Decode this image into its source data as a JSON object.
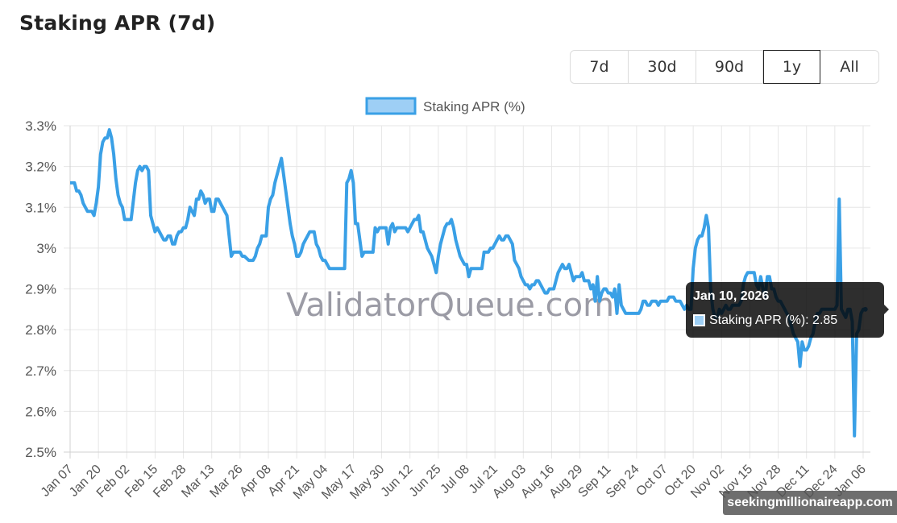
{
  "page": {
    "title": "Staking APR (7d)"
  },
  "range_selector": {
    "options": [
      {
        "label": "7d",
        "active": false
      },
      {
        "label": "30d",
        "active": false
      },
      {
        "label": "90d",
        "active": false
      },
      {
        "label": "1y",
        "active": true
      },
      {
        "label": "All",
        "active": false
      }
    ]
  },
  "watermarks": {
    "center": "ValidatorQueue.com",
    "corner": "seekingmillionaireapp.com"
  },
  "tooltip": {
    "title": "Jan 10, 2026",
    "label": "Staking APR (%): 2.85",
    "swatch_color": "#9ecff5"
  },
  "colors": {
    "line": "#3aa0e6",
    "legend_fill": "#9ecff5",
    "grid": "#e6e6e6",
    "axis_text": "#555555"
  },
  "chart_data": {
    "type": "line",
    "title": "Staking APR (7d)",
    "xlabel": "",
    "ylabel": "",
    "ylim": [
      2.5,
      3.3
    ],
    "y_ticks": [
      "3.3%",
      "3.2%",
      "3.1%",
      "3%",
      "2.9%",
      "2.8%",
      "2.7%",
      "2.6%",
      "2.5%"
    ],
    "x_ticks": [
      "Jan 07",
      "Jan 20",
      "Feb 02",
      "Feb 15",
      "Feb 28",
      "Mar 13",
      "Mar 26",
      "Apr 08",
      "Apr 21",
      "May 04",
      "May 17",
      "May 30",
      "Jun 12",
      "Jun 25",
      "Jul 08",
      "Jul 21",
      "Aug 03",
      "Aug 16",
      "Aug 29",
      "Sep 11",
      "Sep 24",
      "Oct 07",
      "Oct 20",
      "Nov 02",
      "Nov 15",
      "Nov 28",
      "Dec 11",
      "Dec 24",
      "Jan 06"
    ],
    "grid": true,
    "legend": {
      "position": "top",
      "entries": [
        "Staking APR (%)"
      ]
    },
    "series": [
      {
        "name": "Staking APR (%)",
        "x_days": [
          0,
          2,
          3,
          4,
          5,
          6,
          8,
          9,
          10,
          11,
          12,
          13,
          14,
          15,
          16,
          17,
          18,
          19,
          20,
          21,
          22,
          23,
          24,
          25,
          26,
          28,
          30,
          31,
          32,
          33,
          34,
          35,
          36,
          37,
          38,
          39,
          40,
          41,
          42,
          43,
          44,
          45,
          46,
          47,
          48,
          49,
          50,
          51,
          52,
          53,
          54,
          55,
          56,
          57,
          58,
          59,
          60,
          61,
          62,
          63,
          64,
          65,
          66,
          67,
          68,
          69,
          70,
          71,
          72,
          73,
          74,
          75,
          76,
          77,
          78,
          79,
          80,
          82,
          84,
          85,
          86,
          87,
          88,
          89,
          90,
          91,
          92,
          93,
          94,
          95,
          96,
          97,
          98,
          99,
          100,
          101,
          102,
          103,
          104,
          105,
          106,
          107,
          108,
          109,
          110,
          111,
          112,
          113,
          114,
          115,
          116,
          117,
          118,
          119,
          120,
          121,
          122,
          123,
          124,
          125,
          126,
          127,
          128,
          129,
          130,
          131,
          132,
          133,
          134,
          135,
          136,
          137,
          138,
          139,
          140,
          141,
          142,
          143,
          144,
          145,
          146,
          147,
          148,
          149,
          150,
          151,
          152,
          153,
          154,
          155,
          156,
          157,
          158,
          159,
          160,
          161,
          162,
          163,
          164,
          165,
          166,
          167,
          168,
          169,
          170,
          171,
          172,
          173,
          174,
          175,
          176,
          177,
          178,
          179,
          180,
          181,
          182,
          183,
          184,
          185,
          186,
          187,
          188,
          189,
          190,
          191,
          192,
          193,
          194,
          195,
          196,
          197,
          198,
          199,
          200,
          201,
          202,
          203,
          204,
          205,
          206,
          207,
          208,
          209,
          210,
          211,
          212,
          213,
          214,
          215,
          216,
          217,
          218,
          219,
          220,
          221,
          222,
          223,
          224,
          225,
          226,
          227,
          228,
          229,
          230,
          231,
          232,
          233,
          234,
          235,
          236,
          237,
          238,
          239,
          240,
          241,
          242,
          243,
          244,
          245,
          246,
          247,
          248,
          249,
          250,
          251,
          252,
          253,
          254,
          255,
          256,
          257,
          258,
          259,
          260,
          261,
          262,
          263,
          264,
          265,
          266,
          267,
          268,
          269,
          270,
          271,
          272,
          273,
          274,
          275,
          276,
          277,
          278,
          279,
          280,
          281,
          282,
          283,
          284,
          285,
          286,
          287,
          288,
          289,
          290,
          291,
          292,
          293,
          294,
          295,
          296,
          297,
          298,
          299,
          300,
          301,
          302,
          303,
          304,
          305,
          306,
          307,
          308,
          309,
          310,
          311,
          312,
          313,
          314,
          315,
          316,
          317,
          318,
          319,
          320,
          321,
          322,
          323,
          324,
          325,
          326,
          327,
          328,
          329,
          330,
          331,
          332,
          333,
          334,
          335,
          336,
          337,
          338,
          339,
          340,
          341,
          342,
          343,
          344,
          345,
          346,
          347,
          348,
          349,
          350,
          351,
          352,
          353,
          354,
          355,
          356,
          357,
          358,
          359,
          360,
          361,
          362,
          363,
          364,
          365,
          366,
          367,
          368
        ],
        "values": [
          3.16,
          3.16,
          3.14,
          3.14,
          3.13,
          3.11,
          3.09,
          3.09,
          3.09,
          3.08,
          3.11,
          3.15,
          3.23,
          3.26,
          3.27,
          3.27,
          3.29,
          3.27,
          3.23,
          3.17,
          3.13,
          3.11,
          3.1,
          3.07,
          3.07,
          3.07,
          3.16,
          3.19,
          3.2,
          3.19,
          3.2,
          3.2,
          3.19,
          3.08,
          3.06,
          3.04,
          3.05,
          3.04,
          3.03,
          3.02,
          3.02,
          3.03,
          3.03,
          3.01,
          3.01,
          3.03,
          3.04,
          3.04,
          3.05,
          3.05,
          3.07,
          3.1,
          3.09,
          3.08,
          3.12,
          3.12,
          3.14,
          3.13,
          3.11,
          3.12,
          3.12,
          3.09,
          3.09,
          3.12,
          3.12,
          3.11,
          3.1,
          3.09,
          3.08,
          3.03,
          2.98,
          2.99,
          2.99,
          2.99,
          2.99,
          2.98,
          2.98,
          2.97,
          2.97,
          2.98,
          3.0,
          3.01,
          3.03,
          3.03,
          3.03,
          3.1,
          3.12,
          3.13,
          3.16,
          3.18,
          3.2,
          3.22,
          3.18,
          3.14,
          3.1,
          3.06,
          3.03,
          3.01,
          2.98,
          2.98,
          2.99,
          3.01,
          3.02,
          3.03,
          3.04,
          3.04,
          3.04,
          3.01,
          3.0,
          2.98,
          2.97,
          2.97,
          2.96,
          2.95,
          2.95,
          2.95,
          2.95,
          2.95,
          2.95,
          2.95,
          2.95,
          3.16,
          3.17,
          3.19,
          3.16,
          3.06,
          3.06,
          3.02,
          2.98,
          2.99,
          2.99,
          2.99,
          2.99,
          2.99,
          3.05,
          3.04,
          3.05,
          3.05,
          3.05,
          3.05,
          3.01,
          3.05,
          3.06,
          3.04,
          3.05,
          3.05,
          3.05,
          3.05,
          3.05,
          3.04,
          3.05,
          3.06,
          3.07,
          3.07,
          3.08,
          3.04,
          3.04,
          3.02,
          3.0,
          2.99,
          2.98,
          2.96,
          2.94,
          2.98,
          3.01,
          3.03,
          3.05,
          3.06,
          3.06,
          3.07,
          3.05,
          3.02,
          3.0,
          2.98,
          2.97,
          2.96,
          2.96,
          2.93,
          2.95,
          2.95,
          2.95,
          2.95,
          2.95,
          2.95,
          2.99,
          2.99,
          2.99,
          3.0,
          3.0,
          3.01,
          3.02,
          3.03,
          3.02,
          3.02,
          3.03,
          3.03,
          3.02,
          3.01,
          2.97,
          2.96,
          2.95,
          2.93,
          2.92,
          2.91,
          2.91,
          2.9,
          2.91,
          2.91,
          2.92,
          2.92,
          2.91,
          2.9,
          2.89,
          2.89,
          2.9,
          2.9,
          2.9,
          2.92,
          2.94,
          2.95,
          2.96,
          2.95,
          2.95,
          2.96,
          2.94,
          2.92,
          2.93,
          2.93,
          2.93,
          2.94,
          2.92,
          2.92,
          2.92,
          2.9,
          2.91,
          2.87,
          2.93,
          2.87,
          2.89,
          2.9,
          2.9,
          2.89,
          2.89,
          2.88,
          2.9,
          2.84,
          2.91,
          2.86,
          2.85,
          2.84,
          2.84,
          2.84,
          2.84,
          2.84,
          2.84,
          2.84,
          2.85,
          2.87,
          2.87,
          2.86,
          2.86,
          2.87,
          2.87,
          2.87,
          2.86,
          2.87,
          2.87,
          2.87,
          2.87,
          2.88,
          2.88,
          2.88,
          2.87,
          2.87,
          2.87,
          2.86,
          2.85,
          2.86,
          2.85,
          2.85,
          2.95,
          3.0,
          3.02,
          3.03,
          3.03,
          3.05,
          3.08,
          3.05,
          2.9,
          2.85,
          2.83,
          2.83,
          2.85,
          2.84,
          2.85,
          2.86,
          2.85,
          2.85,
          2.86,
          2.86,
          2.86,
          2.86,
          2.87,
          2.91,
          2.93,
          2.94,
          2.94,
          2.94,
          2.94,
          2.91,
          2.9,
          2.93,
          2.9,
          2.88,
          2.93,
          2.93,
          2.9,
          2.9,
          2.88,
          2.87,
          2.87,
          2.86,
          2.85,
          2.84,
          2.83,
          2.81,
          2.79,
          2.78,
          2.77,
          2.71,
          2.77,
          2.75,
          2.75,
          2.76,
          2.78,
          2.79,
          2.82,
          2.84,
          2.84,
          2.85,
          2.85,
          2.85,
          2.85,
          2.85,
          2.85,
          2.85,
          2.86,
          3.12,
          2.85,
          2.84,
          2.83,
          2.85,
          2.85,
          2.82,
          2.54,
          2.79,
          2.8,
          2.84,
          2.85,
          2.85
        ]
      }
    ]
  }
}
